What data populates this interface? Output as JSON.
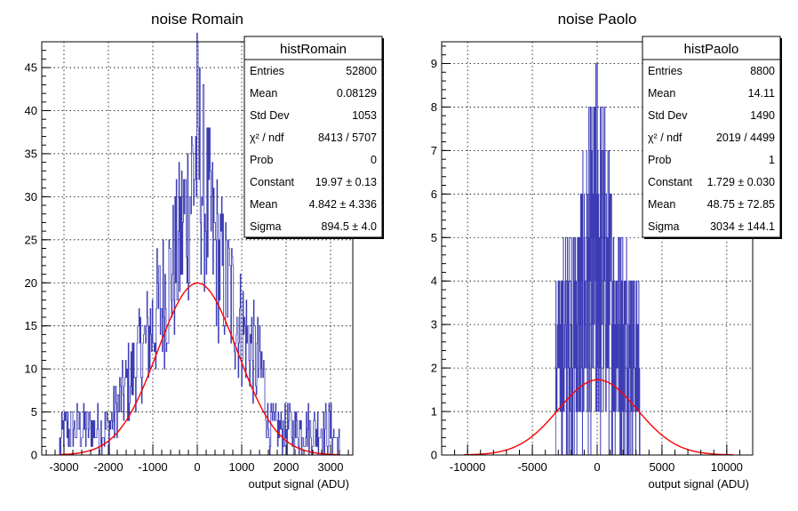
{
  "chart_data": [
    {
      "type": "histogram",
      "title": "noise Romain",
      "xlabel": "output signal (ADU)",
      "ylabel": "",
      "xlim": [
        -3500,
        3500
      ],
      "ylim": [
        0,
        48
      ],
      "xticks": [
        -3000,
        -2000,
        -1000,
        0,
        1000,
        2000,
        3000
      ],
      "yticks": [
        0,
        5,
        10,
        15,
        20,
        25,
        30,
        35,
        40,
        45
      ],
      "grid": true,
      "line_color": "#3c3cb4",
      "fit_color": "#ff0000",
      "stats_box": {
        "title": "histRomain",
        "placement": "top-right",
        "rows": [
          {
            "label": "Entries",
            "value": "52800"
          },
          {
            "label": "Mean",
            "value": "0.08129"
          },
          {
            "label": "Std Dev",
            "value": "1053"
          },
          {
            "label": "χ² / ndf",
            "value": "8413 / 5707"
          },
          {
            "label": "Prob",
            "value": "0"
          },
          {
            "label": "Constant",
            "value": "19.97 ± 0.13"
          },
          {
            "label": "Mean",
            "value": "4.842 ± 4.336"
          },
          {
            "label": "Sigma",
            "value": "894.5 ± 4.0"
          }
        ]
      },
      "fit": {
        "function": "gaus",
        "constant": 19.97,
        "mean": 4.842,
        "sigma": 894.5
      },
      "histogram_range": [
        -3100,
        3200
      ],
      "histogram_envelope": {
        "x": [
          -3100,
          -3000,
          -2000,
          -1500,
          -1000,
          -500,
          -200,
          0,
          200,
          500,
          1000,
          1500,
          1600,
          2000,
          3000,
          3200
        ],
        "y": [
          1,
          3,
          3,
          9,
          15,
          22,
          29,
          36,
          29,
          22,
          15,
          9,
          3,
          3,
          3,
          1
        ]
      }
    },
    {
      "type": "histogram",
      "title": "noise Paolo",
      "xlabel": "output signal (ADU)",
      "ylabel": "",
      "xlim": [
        -12000,
        12000
      ],
      "ylim": [
        0,
        9.5
      ],
      "xticks": [
        -10000,
        -5000,
        0,
        5000,
        10000
      ],
      "yticks": [
        0,
        1,
        2,
        3,
        4,
        5,
        6,
        7,
        8,
        9
      ],
      "grid": true,
      "line_color": "#3c3cb4",
      "fit_color": "#ff0000",
      "stats_box": {
        "title": "histPaolo",
        "placement": "top-right",
        "rows": [
          {
            "label": "Entries",
            "value": "8800"
          },
          {
            "label": "Mean",
            "value": "14.11"
          },
          {
            "label": "Std Dev",
            "value": "1490"
          },
          {
            "label": "χ² / ndf",
            "value": "2019 / 4499"
          },
          {
            "label": "Prob",
            "value": "1"
          },
          {
            "label": "Constant",
            "value": "1.729 ± 0.030"
          },
          {
            "label": "Mean",
            "value": "48.75 ± 72.85"
          },
          {
            "label": "Sigma",
            "value": "3034 ± 144.1"
          }
        ]
      },
      "fit": {
        "function": "gaus",
        "constant": 1.729,
        "mean": 48.75,
        "sigma": 3034
      },
      "histogram_range": [
        -3200,
        3300
      ],
      "histogram_envelope": {
        "x": [
          -3200,
          -2000,
          -1000,
          -500,
          0,
          500,
          1000,
          2000,
          3300
        ],
        "y": [
          3,
          4,
          5,
          6,
          7,
          6,
          5,
          4,
          3
        ]
      }
    }
  ]
}
